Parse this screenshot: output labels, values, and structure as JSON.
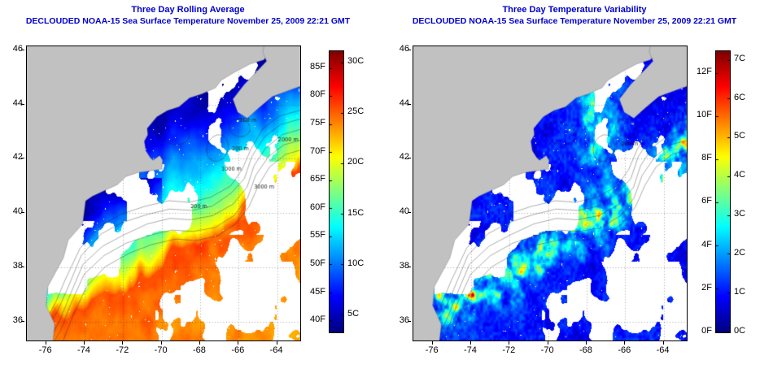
{
  "figure": {
    "background": "#ffffff"
  },
  "panels": [
    {
      "title_line1": "Three Day Rolling Average",
      "title_line2": "DECLOUDED NOAA-15 Sea Surface Temperature November 25, 2009 22:21 GMT"
    },
    {
      "title_line1": "Three Day Temperature Variability",
      "title_line2": "DECLOUDED NOAA-15 Sea Surface Temperature November 25, 2009 22:21 GMT"
    }
  ],
  "chart_data": [
    {
      "type": "heatmap",
      "variant": "geographic-sst-map",
      "title": "Three Day Rolling Average",
      "subtitle": "DECLOUDED NOAA-15 Sea Surface Temperature November 25, 2009 22:21 GMT",
      "title_color": "#0000cc",
      "x_axis": {
        "ticks": [
          -76,
          -74,
          -72,
          -70,
          -68,
          -66,
          -64
        ],
        "tick_labels": [
          "-76",
          "-74",
          "-72",
          "-70",
          "-68",
          "-66",
          "-64"
        ],
        "range": [
          -77.0,
          -62.8
        ],
        "unit": "degrees longitude"
      },
      "y_axis": {
        "ticks": [
          36,
          38,
          40,
          42,
          44,
          46
        ],
        "tick_labels": [
          "36",
          "38",
          "40",
          "42",
          "44",
          "46"
        ],
        "range": [
          35.3,
          46.15
        ],
        "unit": "degrees latitude"
      },
      "colorbar": {
        "colormap": "jet",
        "f_min": 38,
        "f_max": 88,
        "f_tick_labels": [
          "85F",
          "80F",
          "75F",
          "70F",
          "65F",
          "60F",
          "55F",
          "50F",
          "45F",
          "40F"
        ],
        "f_tick_values": [
          85,
          80,
          75,
          70,
          65,
          60,
          55,
          50,
          45,
          40
        ],
        "c_tick_labels": [
          "30C",
          "25C",
          "20C",
          "15C",
          "10C",
          "5C"
        ],
        "c_tick_values": [
          30,
          25,
          20,
          15,
          10,
          5
        ],
        "c_mode": "absolute"
      },
      "land_color": "#c1c1c1",
      "cloud_color": "#ffffff",
      "contour_labels": [
        {
          "text": "100 m",
          "lon": -65.95,
          "lat": 43.35
        },
        {
          "text": "200 m",
          "lon": -68.5,
          "lat": 40.2
        },
        {
          "text": "200 m",
          "lon": -66.35,
          "lat": 42.3
        },
        {
          "text": "1000 m",
          "lon": -66.9,
          "lat": 41.55
        },
        {
          "text": "2000 m",
          "lon": -63.95,
          "lat": 42.65
        },
        {
          "text": "3000 m",
          "lon": -65.2,
          "lat": 40.9
        }
      ],
      "field": {
        "units": "deg C / deg F sea surface temperature",
        "description": "SST 4-8C (dark blue) in Gulf of Maine, Bay of Fundy and Scotian Shelf; 10-16C (cyan-green) on the mid-Atlantic shelf; 20-27C (orange-red) in the Gulf Stream and Sargasso water to the south-east; white = cloud/no data; gray = land"
      }
    },
    {
      "type": "heatmap",
      "variant": "geographic-sst-variability-map",
      "title": "Three Day Temperature Variability",
      "subtitle": "DECLOUDED NOAA-15 Sea Surface Temperature November 25, 2009 22:21 GMT",
      "title_color": "#0000cc",
      "x_axis": {
        "ticks": [
          -76,
          -74,
          -72,
          -70,
          -68,
          -66,
          -64
        ],
        "tick_labels": [
          "-76",
          "-74",
          "-72",
          "-70",
          "-68",
          "-66",
          "-64"
        ],
        "range": [
          -77.0,
          -62.8
        ],
        "unit": "degrees longitude"
      },
      "y_axis": {
        "ticks": [
          36,
          38,
          40,
          42,
          44,
          46
        ],
        "tick_labels": [
          "36",
          "38",
          "40",
          "42",
          "44",
          "46"
        ],
        "range": [
          35.3,
          46.15
        ],
        "unit": "degrees latitude"
      },
      "colorbar": {
        "colormap": "jet",
        "f_min": 0,
        "f_max": 13,
        "f_tick_labels": [
          "12F",
          "10F",
          "8F",
          "6F",
          "4F",
          "2F",
          "0F"
        ],
        "f_tick_values": [
          12,
          10,
          8,
          6,
          4,
          2,
          0
        ],
        "c_tick_labels": [
          "7C",
          "6C",
          "5C",
          "4C",
          "3C",
          "2C",
          "1C",
          "0C"
        ],
        "c_tick_values": [
          7,
          6,
          5,
          4,
          3,
          2,
          1,
          0
        ],
        "c_mode": "delta"
      },
      "land_color": "#c1c1c1",
      "cloud_color": "#ffffff",
      "contour_labels": [
        {
          "text": "200 m",
          "lon": -66.2,
          "lat": 42.5
        }
      ],
      "field": {
        "units": "deg C / deg F temperature variability",
        "description": "Three-day SST variability mostly 0-2C (dark blue) with speckled 3-7C (green-yellow-red) hotspots along the shelf break, the Gulf Stream north wall and the central/eastern Gulf of Maine; white = cloud/no data; gray = land"
      }
    }
  ]
}
